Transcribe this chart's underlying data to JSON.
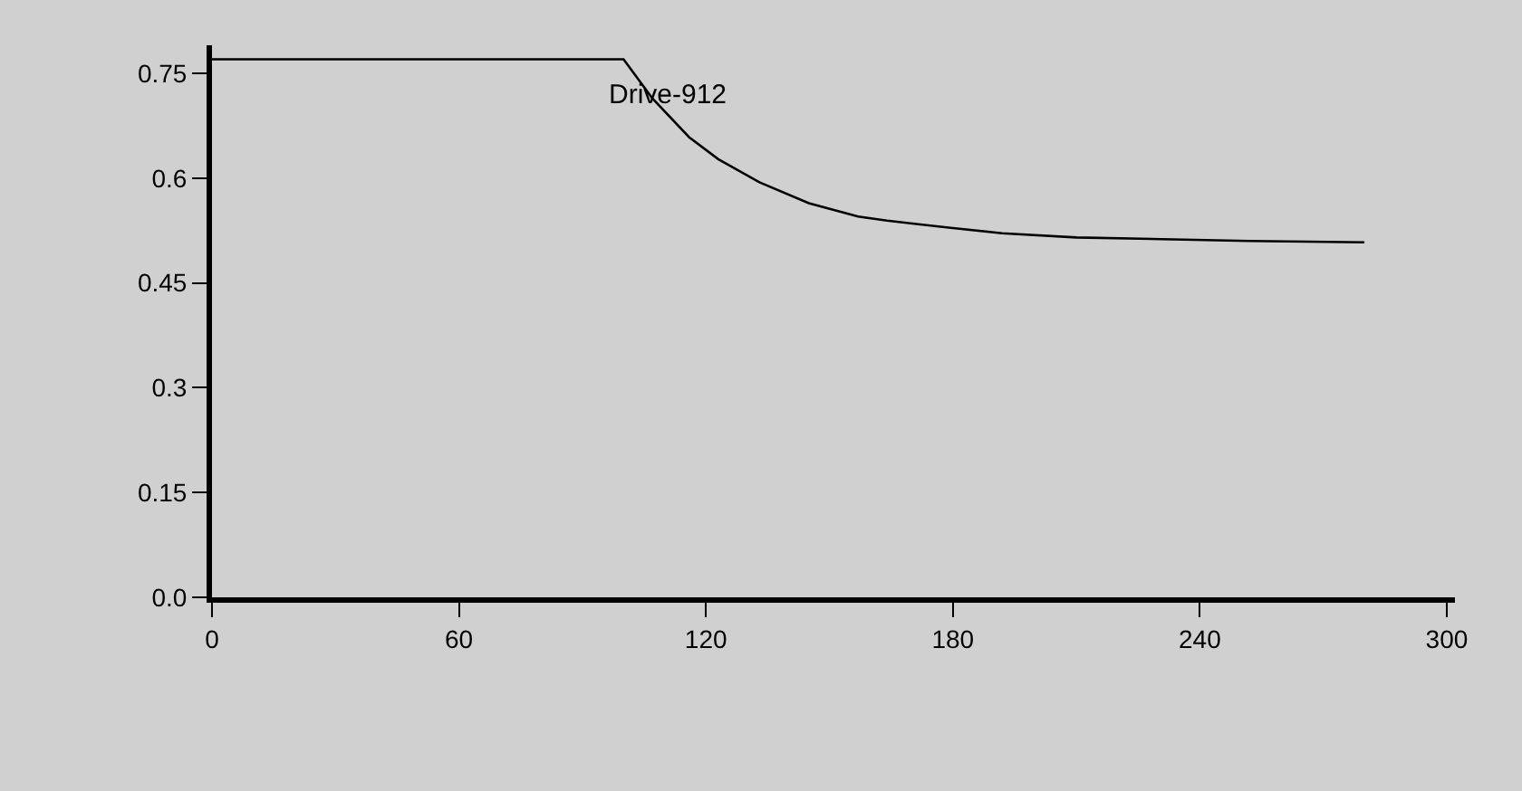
{
  "chart_data": {
    "type": "line",
    "x": [
      0,
      100,
      107,
      116,
      123,
      133,
      145,
      157,
      164,
      179,
      192,
      210,
      252,
      280
    ],
    "series": [
      {
        "name": "Drive-912",
        "color": "#000000",
        "values": [
          0.77,
          0.77,
          0.714,
          0.658,
          0.627,
          0.594,
          0.564,
          0.545,
          0.539,
          0.529,
          0.521,
          0.515,
          0.51,
          0.508
        ]
      }
    ],
    "xlim": [
      0,
      302
    ],
    "xticks": [
      0,
      60,
      120,
      180,
      240,
      300
    ],
    "ylim": [
      0,
      0.79
    ],
    "yticks": [
      {
        "value": 0,
        "label": "0.0"
      },
      0.15,
      0.3,
      0.45,
      0.6,
      0.75
    ],
    "grid": false,
    "legend": false,
    "marker": "none",
    "line_style": "solid"
  }
}
